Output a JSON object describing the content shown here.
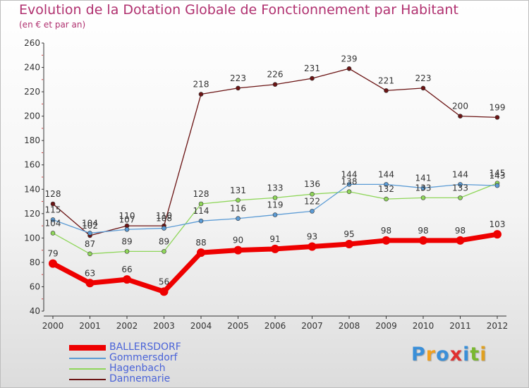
{
  "chart_data": {
    "type": "line",
    "title": "Evolution de la Dotation Globale de Fonctionnement par Habitant",
    "subtitle": "(en € et par an)",
    "categories": [
      "2000",
      "2001",
      "2002",
      "2003",
      "2004",
      "2005",
      "2006",
      "2007",
      "2008",
      "2009",
      "2010",
      "2011",
      "2012"
    ],
    "ylim": [
      40,
      260
    ],
    "yticks": [
      40,
      60,
      80,
      100,
      120,
      140,
      160,
      180,
      200,
      220,
      240,
      260
    ],
    "grid": false,
    "legend_position": "bottom-left",
    "series": [
      {
        "name": "Dannemarie",
        "color": "#6b1414",
        "values": [
          128,
          102,
          110,
          110,
          218,
          223,
          226,
          231,
          239,
          221,
          223,
          200,
          199
        ]
      },
      {
        "name": "Hagenbach",
        "color": "#8fd65a",
        "values": [
          104,
          87,
          89,
          89,
          128,
          131,
          133,
          136,
          138,
          132,
          133,
          133,
          145
        ]
      },
      {
        "name": "Gommersdorf",
        "color": "#5b9bd5",
        "values": [
          115,
          104,
          107,
          108,
          114,
          116,
          119,
          122,
          144,
          144,
          141,
          144,
          143
        ]
      },
      {
        "name": "BALLERSDORF",
        "color": "#ee0000",
        "values": [
          79,
          63,
          66,
          56,
          88,
          90,
          91,
          93,
          95,
          98,
          98,
          98,
          103
        ]
      }
    ]
  },
  "legend": [
    {
      "name": "BALLERSDORF",
      "color": "#ee0000"
    },
    {
      "name": "Gommersdorf",
      "color": "#5b9bd5"
    },
    {
      "name": "Hagenbach",
      "color": "#8fd65a"
    },
    {
      "name": "Dannemarie",
      "color": "#6b1414"
    }
  ],
  "logo": {
    "letters": [
      "P",
      "r",
      "o",
      "x",
      "i",
      "t",
      "i"
    ],
    "colors": [
      "#3a8fd8",
      "#f0a020",
      "#3a8fd8",
      "#e03030",
      "#3a8fd8",
      "#7ab830",
      "#e0a020"
    ]
  }
}
